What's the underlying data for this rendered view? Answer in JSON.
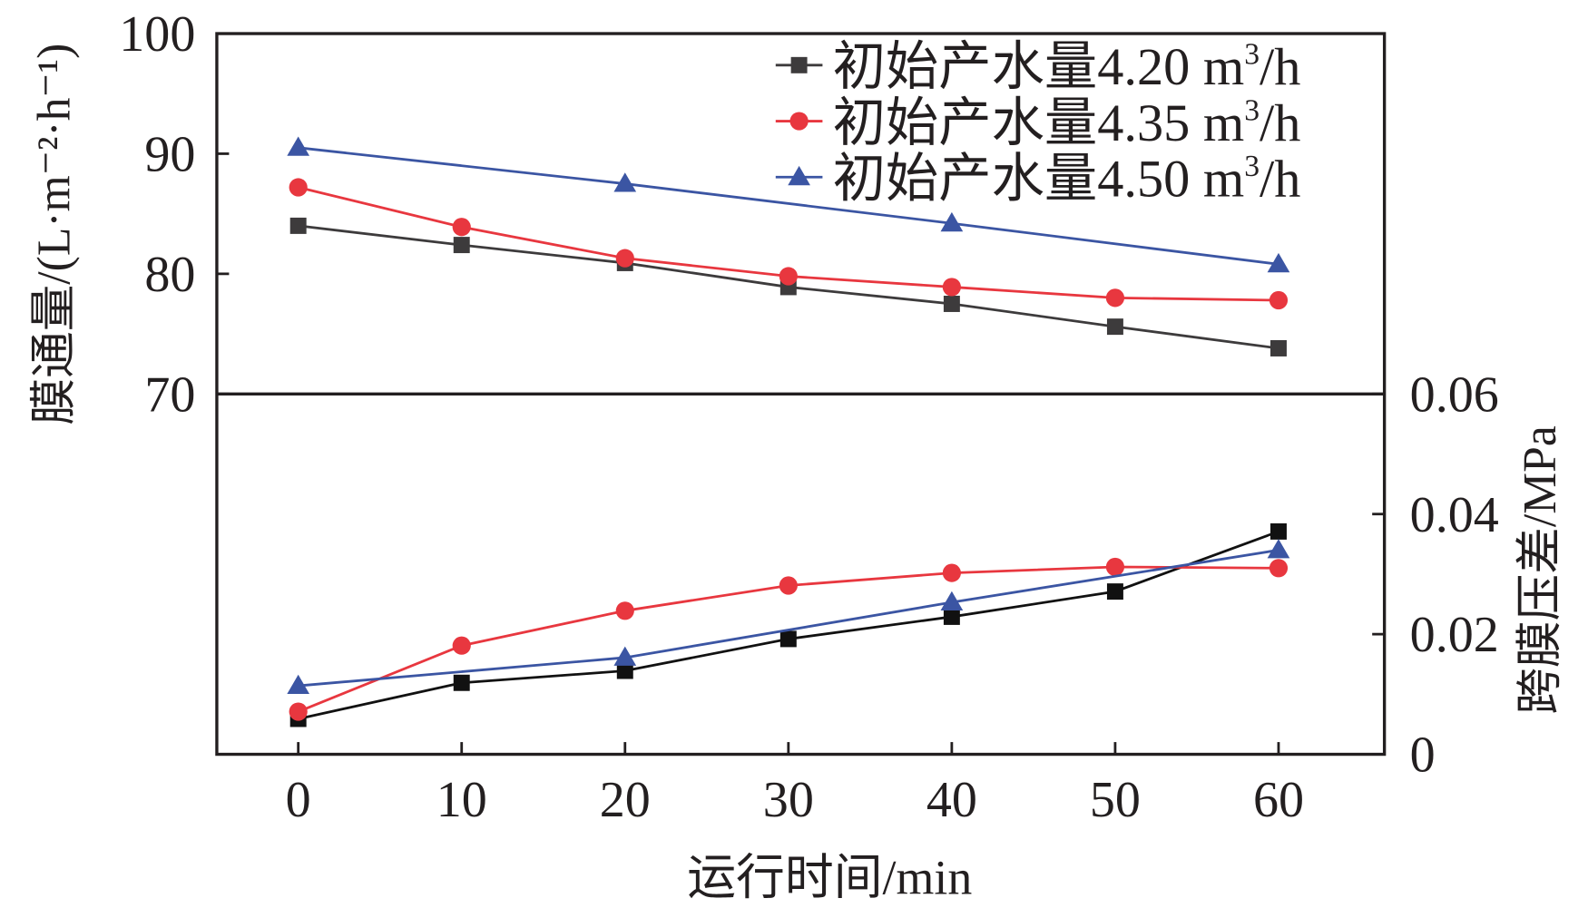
{
  "chart_data": {
    "type": "line",
    "xlabel": "运行时间/min",
    "x": [
      0,
      10,
      20,
      30,
      40,
      50,
      60
    ],
    "xticks": [
      "0",
      "10",
      "20",
      "30",
      "40",
      "50",
      "60"
    ],
    "xlim": [
      -5,
      66
    ],
    "top_panel": {
      "ylabel": "膜通量/(L·m⁻²·h⁻¹)",
      "ylim": [
        70,
        100
      ],
      "yticks": [
        "70",
        "80",
        "90",
        "100"
      ],
      "series": [
        {
          "name": "初始产水量4.20 m³/h",
          "color": "#3d3b3c",
          "marker": "square",
          "x": [
            0,
            10,
            20,
            30,
            40,
            50,
            60
          ],
          "values": [
            84.0,
            82.4,
            80.9,
            78.9,
            77.5,
            75.6,
            73.8
          ]
        },
        {
          "name": "初始产水量4.35 m³/h",
          "color": "#e8373f",
          "marker": "circle",
          "x": [
            0,
            10,
            20,
            30,
            40,
            50,
            60
          ],
          "values": [
            87.2,
            83.9,
            81.3,
            79.8,
            78.9,
            78.0,
            77.8
          ]
        },
        {
          "name": "初始产水量4.50 m³/h",
          "color": "#3b55a3",
          "marker": "triangle",
          "x": [
            0,
            20,
            40,
            60
          ],
          "values": [
            90.5,
            87.5,
            84.2,
            80.8
          ]
        }
      ]
    },
    "bottom_panel": {
      "ylabel": "跨膜压差/MPa",
      "ylim": [
        0,
        0.06
      ],
      "yticks": [
        "0",
        "0.02",
        "0.04",
        "0.06"
      ],
      "series": [
        {
          "name": "初始产水量4.20 m³/h",
          "color": "#111111",
          "marker": "square",
          "x": [
            0,
            10,
            20,
            30,
            40,
            50,
            60
          ],
          "values": [
            0.0059,
            0.0119,
            0.0139,
            0.0192,
            0.0229,
            0.0271,
            0.0371
          ]
        },
        {
          "name": "初始产水量4.35 m³/h",
          "color": "#e8373f",
          "marker": "circle",
          "x": [
            0,
            10,
            20,
            30,
            40,
            50,
            60
          ],
          "values": [
            0.0071,
            0.0181,
            0.0239,
            0.0281,
            0.0302,
            0.0312,
            0.031
          ]
        },
        {
          "name": "初始产水量4.50 m³/h",
          "color": "#3b55a3",
          "marker": "triangle",
          "x": [
            0,
            20,
            40,
            60
          ],
          "values": [
            0.0114,
            0.0161,
            0.0253,
            0.034
          ]
        }
      ]
    },
    "legend": {
      "placement": "top-right",
      "entries": [
        {
          "prefix": "初始产水量4.20 m",
          "sup": "3",
          "suffix": "/h"
        },
        {
          "prefix": "初始产水量4.35 m",
          "sup": "3",
          "suffix": "/h"
        },
        {
          "prefix": "初始产水量4.50 m",
          "sup": "3",
          "suffix": "/h"
        }
      ]
    },
    "grid": false
  }
}
